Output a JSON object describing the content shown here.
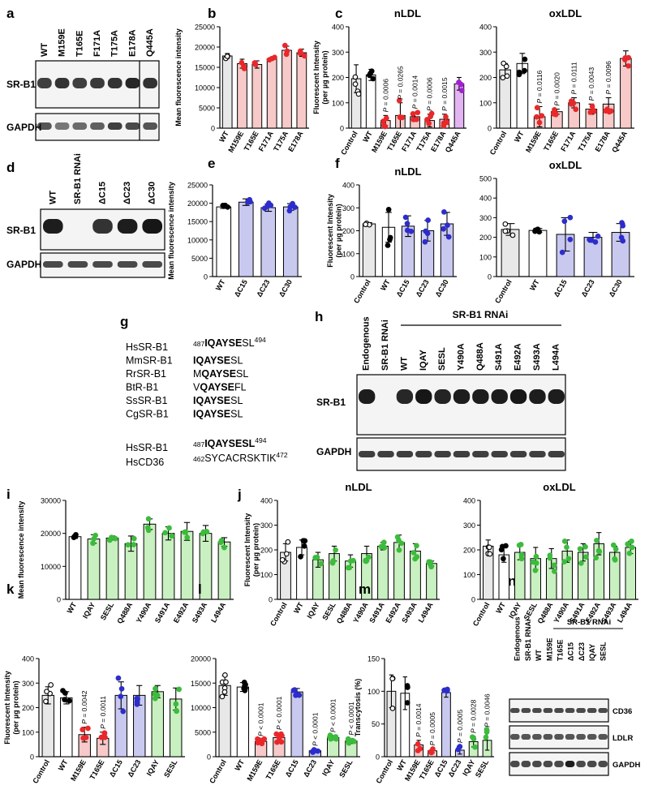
{
  "colors": {
    "control": "#e8e8e8",
    "wt": "#ffffff",
    "red_fill": "#f7c9c9",
    "red_dot": "#e8282b",
    "blue_fill": "#c9c9f0",
    "blue_dot": "#2d2dcc",
    "green_fill": "#c9f0c0",
    "green_dot": "#3dbb3d",
    "purple_fill": "#e2b4f2",
    "purple_dot": "#a021d0"
  },
  "panels": {
    "a": {
      "letter": "a",
      "lanes": [
        "WT",
        "M159E",
        "T165E",
        "F171A",
        "T175A",
        "E178A",
        "Q445A"
      ],
      "bands": [
        "SR-B1",
        "GAPDH"
      ]
    },
    "d": {
      "letter": "d",
      "lanes": [
        "WT",
        "SR-B1 RNAi",
        "ΔC15",
        "ΔC23",
        "ΔC30"
      ],
      "bands": [
        "SR-B1",
        "GAPDH"
      ]
    },
    "g": {
      "letter": "g",
      "rows": [
        {
          "name": "HsSR-B1",
          "pre": "487",
          "seq": "IQAYSESL",
          "post": "494"
        },
        {
          "name": "MmSR-B1",
          "pre": "",
          "seq": "IQAYSESL",
          "post": ""
        },
        {
          "name": "RrSR-B1",
          "pre": "",
          "seq": "MQAYSESL",
          "post": ""
        },
        {
          "name": "BtR-B1",
          "pre": "",
          "seq": "VQAYSEFL",
          "post": ""
        },
        {
          "name": "SsSR-B1",
          "pre": "",
          "seq": "IQAYSESL",
          "post": ""
        },
        {
          "name": "CgSR-B1",
          "pre": "",
          "seq": "IQAYSESL",
          "post": ""
        }
      ],
      "compare": [
        {
          "name": "HsSR-B1",
          "pre": "487",
          "seq": "IQAYSESL",
          "post": "494"
        },
        {
          "name": "HsCD36",
          "pre": "462",
          "seq": "SYCACRSKTIK",
          "post": "472"
        }
      ]
    },
    "h": {
      "letter": "h",
      "rnai_header": "SR-B1 RNAi",
      "lanes": [
        "Endogenous",
        "SR-B1 RNAi",
        "WT",
        "IQAY",
        "SESL",
        "Y490A",
        "Q488A",
        "S491A",
        "E492A",
        "S493A",
        "L494A"
      ],
      "bands": [
        "SR-B1",
        "GAPDH"
      ]
    },
    "n": {
      "letter": "n",
      "rnai_header": "SR-B1 RNAi",
      "lanes": [
        "Endogenous",
        "SR-B1 RNAi",
        "WT",
        "M159E",
        "T165E",
        "ΔC15",
        "ΔC23",
        "IQAY",
        "SESL"
      ],
      "bands": [
        "CD36",
        "LDLR",
        "GAPDH"
      ]
    }
  },
  "chart_data": [
    {
      "id": "b",
      "type": "bar",
      "letter": "b",
      "ylabel": "Mean fluorescence intensity",
      "ylim": [
        0,
        25000
      ],
      "yticks": [
        0,
        5000,
        10000,
        15000,
        20000,
        25000
      ],
      "categories": [
        "WT",
        "M159E",
        "T165E",
        "F171A",
        "T175A",
        "E178A"
      ],
      "values": [
        17800,
        15900,
        15700,
        17100,
        19200,
        18600
      ],
      "errors": [
        600,
        1100,
        900,
        300,
        1000,
        900
      ],
      "colors": [
        "control",
        "red",
        "red",
        "red",
        "red",
        "red"
      ],
      "pvalues": []
    },
    {
      "id": "c1",
      "type": "bar",
      "letter": "c",
      "title": "nLDL",
      "ylabel": "Fluorescent Intensity (per µg protein)",
      "ylim": [
        0,
        400
      ],
      "yticks": [
        0,
        100,
        200,
        300,
        400
      ],
      "categories": [
        "Control",
        "WT",
        "M159E",
        "T165E",
        "F171A",
        "T175A",
        "E178A",
        "Q445A"
      ],
      "values": [
        195,
        210,
        30,
        50,
        45,
        30,
        35,
        175
      ],
      "errors": [
        55,
        22,
        20,
        50,
        18,
        25,
        20,
        25
      ],
      "colors": [
        "control",
        "wt",
        "red",
        "red",
        "red",
        "red",
        "red",
        "purple"
      ],
      "pvalues": [
        "",
        "",
        "P = 0.0006",
        "P = 0.0265",
        "P = 0.0014",
        "P = 0.0006",
        "P = 0.0015",
        ""
      ]
    },
    {
      "id": "c2",
      "type": "bar",
      "letter": "",
      "title": "oxLDL",
      "ylabel": "",
      "ylim": [
        0,
        400
      ],
      "yticks": [
        0,
        100,
        200,
        300,
        400
      ],
      "categories": [
        "Control",
        "WT",
        "M159E",
        "T165E",
        "F171A",
        "T175A",
        "E178A",
        "Q445A"
      ],
      "values": [
        230,
        255,
        45,
        65,
        100,
        75,
        95,
        275
      ],
      "errors": [
        25,
        40,
        40,
        10,
        20,
        20,
        25,
        30
      ],
      "colors": [
        "control",
        "wt",
        "red",
        "red",
        "red",
        "red",
        "red",
        "red"
      ],
      "pvalues": [
        "",
        "",
        "P = 0.0116",
        "P = 0.0020",
        "P = 0.0111",
        "P = 0.0043",
        "P = 0.0096",
        ""
      ]
    },
    {
      "id": "e",
      "type": "bar",
      "letter": "e",
      "ylabel": "Mean fluorescence intensity",
      "ylim": [
        0,
        25000
      ],
      "yticks": [
        0,
        5000,
        10000,
        15000,
        20000,
        25000
      ],
      "categories": [
        "WT",
        "ΔC15",
        "ΔC23",
        "ΔC30"
      ],
      "values": [
        19000,
        20300,
        18800,
        19000
      ],
      "errors": [
        400,
        900,
        1000,
        900
      ],
      "colors": [
        "wt",
        "blue",
        "blue",
        "blue"
      ],
      "pvalues": []
    },
    {
      "id": "f1",
      "type": "bar",
      "letter": "f",
      "title": "nLDL",
      "ylabel": "Fluorescent Intensity (per µg protein)",
      "ylim": [
        0,
        400
      ],
      "yticks": [
        0,
        100,
        200,
        300,
        400
      ],
      "categories": [
        "Control",
        "WT",
        "ΔC15",
        "ΔC23",
        "ΔC30"
      ],
      "values": [
        230,
        215,
        220,
        200,
        230
      ],
      "errors": [
        5,
        65,
        45,
        45,
        50
      ],
      "colors": [
        "control",
        "wt",
        "blue",
        "blue",
        "blue"
      ],
      "pvalues": []
    },
    {
      "id": "f2",
      "type": "bar",
      "letter": "",
      "title": "oxLDL",
      "ylabel": "",
      "ylim": [
        0,
        500
      ],
      "yticks": [
        0,
        100,
        200,
        300,
        400,
        500
      ],
      "categories": [
        "Control",
        "WT",
        "ΔC15",
        "ΔC23",
        "ΔC30"
      ],
      "values": [
        240,
        235,
        215,
        200,
        225
      ],
      "errors": [
        30,
        10,
        85,
        25,
        45
      ],
      "colors": [
        "control",
        "wt",
        "blue",
        "blue",
        "blue"
      ],
      "pvalues": []
    },
    {
      "id": "i",
      "type": "bar",
      "letter": "i",
      "ylabel": "Mean fluorescence intensity",
      "ylim": [
        0,
        30000
      ],
      "yticks": [
        0,
        10000,
        20000,
        30000
      ],
      "categories": [
        "WT",
        "IQAY",
        "SESL",
        "Q488A",
        "Y490A",
        "S491A",
        "E492A",
        "S493A",
        "L494A"
      ],
      "values": [
        19000,
        18300,
        18600,
        16900,
        22800,
        20000,
        20600,
        20000,
        17400
      ],
      "errors": [
        500,
        1300,
        600,
        2300,
        1600,
        2000,
        2700,
        2400,
        1300
      ],
      "colors": [
        "wt",
        "green",
        "green",
        "green",
        "green",
        "green",
        "green",
        "green",
        "green"
      ],
      "pvalues": []
    },
    {
      "id": "j1",
      "type": "bar",
      "letter": "j",
      "title": "nLDL",
      "ylabel": "Fluorescent Intensity (per µg protein)",
      "ylim": [
        0,
        400
      ],
      "yticks": [
        0,
        100,
        200,
        300,
        400
      ],
      "categories": [
        "Control",
        "WT",
        "IQAY",
        "SESL",
        "Q488A",
        "Y490A",
        "S491A",
        "E492A",
        "S493A",
        "L494A"
      ],
      "values": [
        190,
        210,
        160,
        185,
        155,
        185,
        215,
        230,
        195,
        145
      ],
      "errors": [
        35,
        30,
        30,
        30,
        25,
        30,
        15,
        30,
        30,
        10
      ],
      "colors": [
        "control",
        "wt",
        "green",
        "green",
        "green",
        "green",
        "green",
        "green",
        "green",
        "green"
      ],
      "pvalues": []
    },
    {
      "id": "j2",
      "type": "bar",
      "letter": "",
      "title": "oxLDL",
      "ylabel": "",
      "ylim": [
        0,
        400
      ],
      "yticks": [
        0,
        100,
        200,
        300,
        400
      ],
      "categories": [
        "Control",
        "WT",
        "IQAY",
        "SESL",
        "Q488A",
        "Y490A",
        "S491A",
        "E492A",
        "S493A",
        "L494A"
      ],
      "values": [
        215,
        180,
        190,
        165,
        165,
        195,
        190,
        225,
        190,
        210
      ],
      "errors": [
        25,
        30,
        30,
        45,
        40,
        45,
        35,
        45,
        25,
        25
      ],
      "colors": [
        "control",
        "wt",
        "green",
        "green",
        "green",
        "green",
        "green",
        "green",
        "green",
        "green"
      ],
      "pvalues": []
    },
    {
      "id": "k",
      "type": "bar",
      "letter": "k",
      "ylabel": "Fluorescent Intensity (per µg protein)",
      "ylim": [
        0,
        400
      ],
      "yticks": [
        0,
        100,
        200,
        300,
        400
      ],
      "categories": [
        "Control",
        "WT",
        "M159E",
        "T165E",
        "ΔC15",
        "ΔC23",
        "IQAY",
        "SESL"
      ],
      "values": [
        250,
        240,
        90,
        75,
        250,
        250,
        265,
        235
      ],
      "errors": [
        35,
        25,
        30,
        25,
        55,
        40,
        25,
        45
      ],
      "colors": [
        "control",
        "wt",
        "red",
        "red",
        "blue",
        "blue",
        "green",
        "green"
      ],
      "pvalues": [
        "",
        "",
        "P = 0.0042",
        "P = 0.0011",
        "",
        "",
        "",
        ""
      ]
    },
    {
      "id": "l",
      "type": "bar",
      "letter": "l",
      "ylabel": "",
      "ylim": [
        0,
        20000
      ],
      "yticks": [
        0,
        5000,
        10000,
        15000,
        20000
      ],
      "categories": [
        "Control",
        "WT",
        "M159E",
        "T165E",
        "ΔC15",
        "ΔC23",
        "IQAY",
        "SESL"
      ],
      "values": [
        14500,
        14200,
        3100,
        3900,
        13200,
        1200,
        3900,
        3200
      ],
      "errors": [
        2000,
        900,
        400,
        900,
        700,
        300,
        400,
        500
      ],
      "colors": [
        "control",
        "wt",
        "red",
        "red",
        "blue",
        "blue",
        "green",
        "green"
      ],
      "pvalues": [
        "",
        "",
        "P < 0.0001",
        "P < 0.0001",
        "",
        "P < 0.0001",
        "P < 0.0001",
        "P < 0.0001"
      ]
    },
    {
      "id": "m",
      "type": "bar",
      "letter": "m",
      "ylabel": "Transcytosis (%)",
      "ylim": [
        0,
        150
      ],
      "yticks": [
        0,
        50,
        100,
        150
      ],
      "categories": [
        "Control",
        "WT",
        "M159E",
        "T165E",
        "ΔC15",
        "ΔC23",
        "IQAY",
        "SESL"
      ],
      "values": [
        100,
        97,
        18,
        9,
        98,
        10,
        23,
        25
      ],
      "errors": [
        25,
        25,
        7,
        3,
        7,
        6,
        8,
        15
      ],
      "colors": [
        "control",
        "wt",
        "red",
        "red",
        "blue",
        "blue",
        "green",
        "green"
      ],
      "pvalues": [
        "",
        "",
        "P = 0.0014",
        "P = 0.0005",
        "",
        "P = 0.0005",
        "P = 0.0028",
        "P = 0.0046"
      ]
    }
  ]
}
